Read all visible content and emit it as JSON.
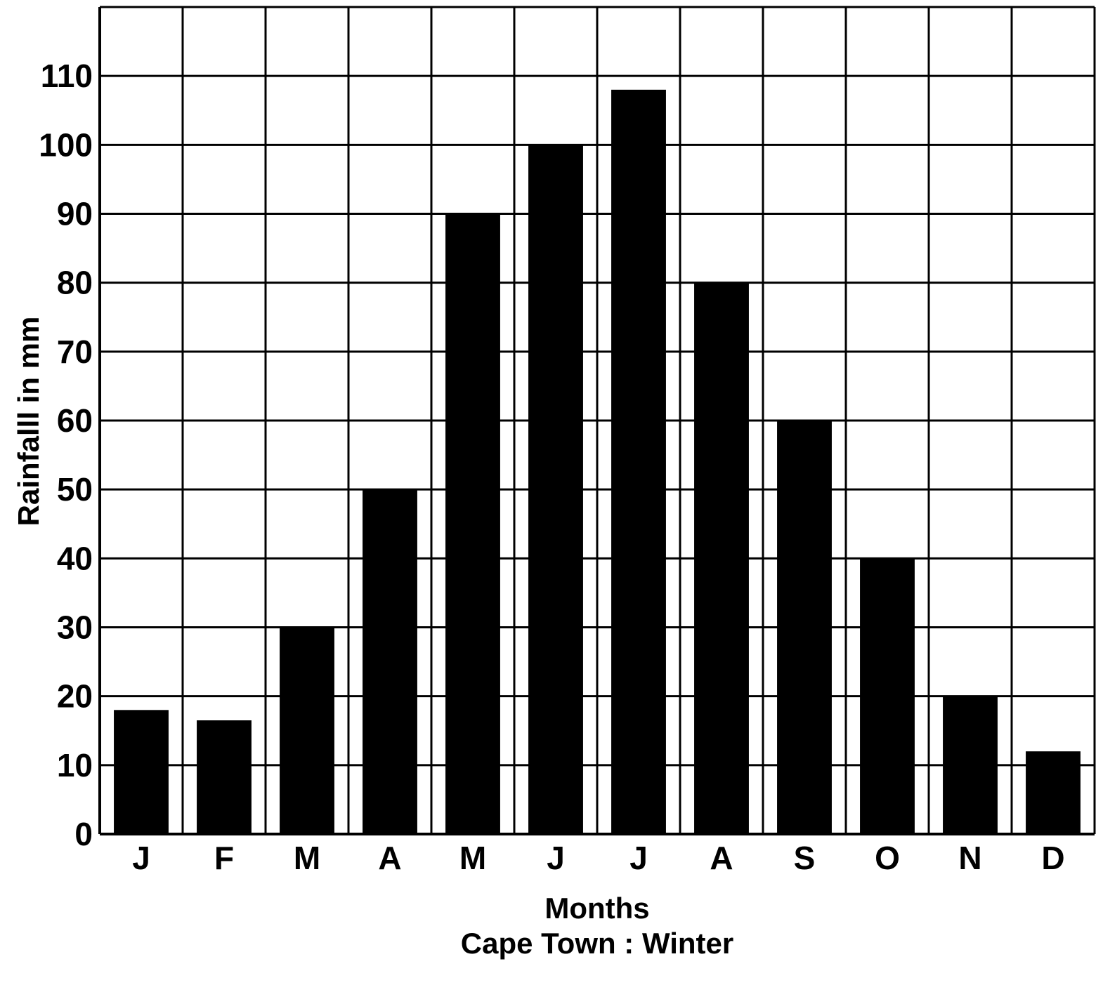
{
  "chart_data": {
    "type": "bar",
    "categories": [
      "J",
      "F",
      "M",
      "A",
      "M",
      "J",
      "J",
      "A",
      "S",
      "O",
      "N",
      "D"
    ],
    "values": [
      18,
      16.5,
      30,
      50,
      90,
      100,
      108,
      80,
      60,
      40,
      20,
      12
    ],
    "title": "",
    "xlabel": "Months",
    "ylabel": "Rainfalll in mm",
    "caption": "Cape Town : Winter",
    "ylim": [
      0,
      120
    ],
    "yticks": [
      "0",
      "10",
      "20",
      "30",
      "40",
      "50",
      "60",
      "70",
      "80",
      "90",
      "100",
      "110"
    ],
    "grid": true,
    "legend": "none",
    "bar_color": "#000000",
    "grid_color": "#000000"
  }
}
